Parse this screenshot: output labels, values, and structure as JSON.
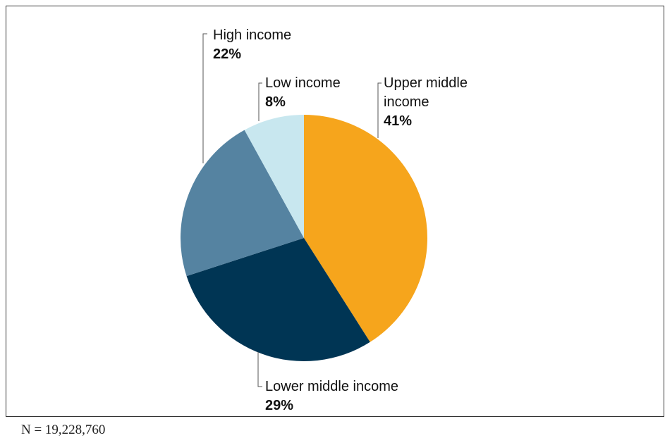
{
  "chart_data": {
    "type": "pie",
    "slices": [
      {
        "label": "Upper middle income",
        "value": 41,
        "value_label": "41%",
        "color": "#f6a51c"
      },
      {
        "label": "Lower middle income",
        "value": 29,
        "value_label": "29%",
        "color": "#003554"
      },
      {
        "label": "High income",
        "value": 22,
        "value_label": "22%",
        "color": "#5583a1"
      },
      {
        "label": "Low income",
        "value": 8,
        "value_label": "8%",
        "color": "#c8e7ef"
      }
    ],
    "label_lines": {
      "upper_middle": [
        "Upper middle",
        "income"
      ],
      "lower_middle": [
        "Lower middle income"
      ],
      "high": [
        "High income"
      ],
      "low": [
        "Low income"
      ]
    },
    "start_angle": "12 o'clock",
    "direction": "clockwise"
  },
  "note": "N = 19,228,760"
}
